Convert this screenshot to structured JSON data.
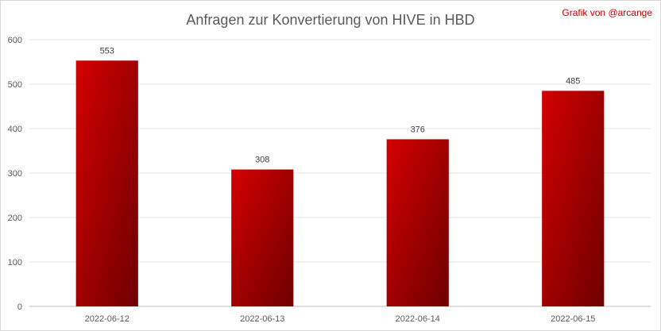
{
  "credit": "Grafik von @arcange",
  "chart_data": {
    "type": "bar",
    "title": "Anfragen zur Konvertierung von HIVE in HBD",
    "categories": [
      "2022-06-12",
      "2022-06-13",
      "2022-06-14",
      "2022-06-15"
    ],
    "values": [
      553,
      308,
      376,
      485
    ],
    "xlabel": "",
    "ylabel": "",
    "ylim": [
      0,
      600
    ],
    "yticks": [
      0,
      100,
      200,
      300,
      400,
      500,
      600
    ],
    "grid": true,
    "data_labels": true,
    "bar_color_light": "#d40000",
    "bar_color_dark": "#6e0000"
  }
}
